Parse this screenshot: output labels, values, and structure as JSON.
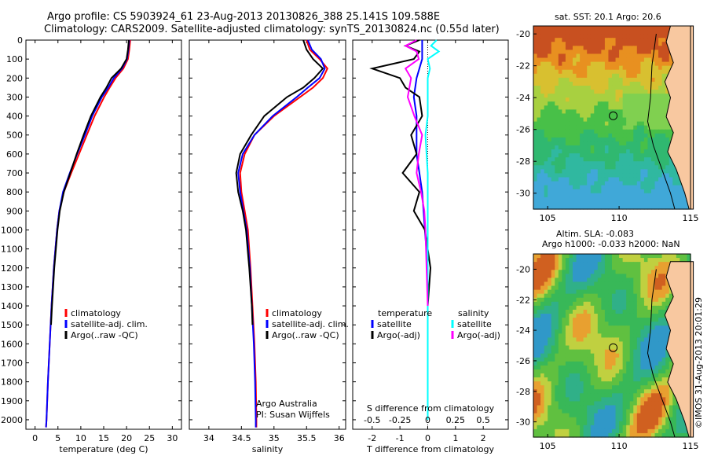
{
  "header": {
    "line1": "Argo profile: CS 5903924_61 23-Aug-2013 20130826_388 25.141S 109.588E",
    "line2": "Climatology: CARS2009. Satellite-adjusted climatology: synTS_20130824.nc (0.55d later)"
  },
  "sst_map": {
    "title": "sat. SST: 20.1  Argo: 20.6"
  },
  "sla_map": {
    "title1": "Altim. SLA: -0.083",
    "title2": "Argo h1000: -0.033 h2000: NaN"
  },
  "footer_vertical": "©IMOS 31-Aug-2013 20:01:29",
  "credit": {
    "line1": "Argo Australia",
    "line2": "PI: Susan Wijffels"
  },
  "colors": {
    "climatology": "#ff0000",
    "satellite": "#0000ff",
    "argo": "#000000",
    "sal_satellite": "#00ffff",
    "sal_argo": "#ff00ff",
    "land": "#f8c8a0"
  },
  "chart_data": [
    {
      "type": "line",
      "xlabel": "temperature (deg C)",
      "ylabel": "",
      "xlim": [
        -2,
        32
      ],
      "ylim": [
        2050,
        0
      ],
      "xticks": [
        0,
        5,
        10,
        15,
        20,
        25,
        30
      ],
      "yticks": [
        0,
        100,
        200,
        300,
        400,
        500,
        600,
        700,
        800,
        900,
        1000,
        1100,
        1200,
        1300,
        1400,
        1500,
        1600,
        1700,
        1800,
        1900,
        2000
      ],
      "legend": [
        "climatology",
        "satellite-adj. clim.",
        "Argo(..raw -QC)"
      ],
      "series": [
        {
          "name": "climatology",
          "depth": [
            0,
            50,
            100,
            150,
            200,
            250,
            300,
            400,
            500,
            600,
            700,
            800,
            900,
            1000,
            1200,
            1400,
            1600,
            1800,
            2000,
            2040
          ],
          "values": [
            20.8,
            20.6,
            20.3,
            19.3,
            17.6,
            16.3,
            15.1,
            13.0,
            11.3,
            9.6,
            7.9,
            6.3,
            5.3,
            4.8,
            4.1,
            3.6,
            3.2,
            2.8,
            2.5,
            2.4
          ]
        },
        {
          "name": "satellite-adj. clim.",
          "depth": [
            0,
            50,
            100,
            150,
            200,
            250,
            300,
            400,
            500,
            600,
            700,
            800,
            900,
            1000,
            1200,
            1400,
            1600,
            1800,
            2000,
            2040
          ],
          "values": [
            20.6,
            20.4,
            20.1,
            19.0,
            17.2,
            16.0,
            14.6,
            12.5,
            10.9,
            9.2,
            7.6,
            6.1,
            5.3,
            4.8,
            4.1,
            3.6,
            3.2,
            2.8,
            2.5,
            2.4
          ]
        },
        {
          "name": "Argo(..raw -QC)",
          "depth": [
            0,
            50,
            100,
            150,
            200,
            250,
            300,
            400,
            500,
            600,
            700,
            800,
            900,
            1000,
            1200,
            1400,
            1500
          ],
          "values": [
            20.5,
            20.3,
            20.0,
            18.8,
            16.7,
            15.6,
            14.3,
            12.2,
            10.6,
            9.1,
            7.7,
            6.3,
            5.4,
            4.9,
            4.2,
            3.7,
            3.5
          ]
        }
      ]
    },
    {
      "type": "line",
      "xlabel": "salinity",
      "ylabel": "",
      "xlim": [
        33.7,
        36.1
      ],
      "ylim": [
        2050,
        0
      ],
      "xticks": [
        34,
        34.5,
        35,
        35.5,
        36
      ],
      "legend": [
        "climatology",
        "satellite-adj. clim.",
        "Argo(..raw -QC)"
      ],
      "series": [
        {
          "name": "climatology",
          "depth": [
            0,
            50,
            100,
            150,
            200,
            250,
            300,
            400,
            500,
            600,
            700,
            800,
            900,
            1000,
            1200,
            1400,
            1600,
            1800,
            2000,
            2040
          ],
          "values": [
            35.5,
            35.55,
            35.7,
            35.82,
            35.75,
            35.6,
            35.4,
            35.0,
            34.7,
            34.55,
            34.48,
            34.5,
            34.55,
            34.6,
            34.64,
            34.67,
            34.7,
            34.72,
            34.73,
            34.73
          ]
        },
        {
          "name": "satellite-adj. clim.",
          "depth": [
            0,
            50,
            100,
            150,
            200,
            250,
            300,
            400,
            500,
            600,
            700,
            800,
            900,
            1000,
            1200,
            1400,
            1600,
            1800,
            2000,
            2040
          ],
          "values": [
            35.52,
            35.58,
            35.72,
            35.78,
            35.7,
            35.52,
            35.35,
            34.98,
            34.7,
            34.52,
            34.45,
            34.48,
            34.53,
            34.58,
            34.63,
            34.66,
            34.69,
            34.71,
            34.72,
            34.72
          ]
        },
        {
          "name": "Argo(..raw -QC)",
          "depth": [
            0,
            50,
            100,
            150,
            200,
            250,
            300,
            400,
            500,
            600,
            700,
            800,
            900,
            1000,
            1200,
            1400,
            1500
          ],
          "values": [
            35.45,
            35.5,
            35.6,
            35.75,
            35.62,
            35.45,
            35.2,
            34.85,
            34.65,
            34.48,
            34.42,
            34.45,
            34.52,
            34.57,
            34.62,
            34.66,
            34.67
          ]
        }
      ]
    },
    {
      "type": "line",
      "xlabel": "T difference from climatology",
      "ylabel": "",
      "xlim": [
        -2.7,
        2.9
      ],
      "ylim": [
        2050,
        0
      ],
      "xticks": [
        -2,
        -1,
        0,
        1,
        2
      ],
      "top_xlabel": "S difference from climatology",
      "top_xticks": [
        "-0.5",
        "-0.25",
        "0",
        "0.25",
        "0.5"
      ],
      "legend": [
        "temperature",
        "satellite",
        "Argo(-adj)",
        "salinity",
        "satellite",
        "Argo(-adj)"
      ],
      "series": [
        {
          "name": "temperature satellite",
          "depth": [
            0,
            100,
            200,
            300,
            400,
            500,
            600,
            700,
            800,
            1000,
            1200,
            1400,
            1600,
            1800,
            1900
          ],
          "values": [
            -0.2,
            -0.2,
            -0.4,
            -0.5,
            -0.4,
            -0.4,
            -0.4,
            -0.3,
            -0.2,
            -0.1,
            0,
            0,
            0,
            0,
            0
          ]
        },
        {
          "name": "temperature Argo(-adj)",
          "depth": [
            0,
            30,
            60,
            100,
            150,
            200,
            250,
            300,
            400,
            500,
            600,
            700,
            800,
            900,
            1000,
            1200,
            1400,
            1600,
            1800,
            1900
          ],
          "values": [
            -0.3,
            -0.8,
            -0.3,
            -0.5,
            -2.0,
            -1.0,
            -0.8,
            -0.3,
            -0.2,
            -0.6,
            -0.4,
            -0.9,
            -0.3,
            -0.5,
            -0.1,
            0.1,
            0,
            0,
            0,
            0
          ]
        },
        {
          "name": "salinity satellite",
          "depth": [
            0,
            30,
            60,
            100,
            150,
            200,
            300,
            400,
            500,
            600,
            700,
            800,
            1000,
            1200,
            1400,
            1600,
            1800,
            2000
          ],
          "values": [
            0.08,
            0.03,
            0.1,
            0.0,
            0.02,
            0.0,
            0.0,
            0.0,
            -0.02,
            -0.01,
            0.0,
            0.0,
            0.0,
            0.0,
            0.0,
            0.0,
            0.0,
            0.0
          ]
        },
        {
          "name": "salinity Argo(-adj)",
          "depth": [
            0,
            30,
            60,
            100,
            150,
            200,
            300,
            400,
            500,
            600,
            700,
            800,
            900,
            1000,
            1200,
            1400
          ],
          "values": [
            -0.1,
            -0.2,
            -0.1,
            -0.08,
            -0.2,
            -0.15,
            -0.18,
            -0.12,
            -0.05,
            -0.08,
            -0.1,
            -0.06,
            -0.03,
            -0.02,
            -0.01,
            0.0
          ]
        }
      ]
    },
    {
      "type": "heatmap",
      "title": "sat. SST: 20.1  Argo: 20.6",
      "xlim": [
        104,
        115
      ],
      "ylim": [
        -31,
        -19.5
      ],
      "xticks": [
        105,
        110,
        115
      ],
      "yticks": [
        -20,
        -22,
        -24,
        -26,
        -28,
        -30
      ],
      "argo_position": {
        "lon": 109.588,
        "lat": -25.141
      }
    },
    {
      "type": "heatmap",
      "title": "Altim. SLA: -0.083",
      "xlim": [
        104,
        115
      ],
      "ylim": [
        -31,
        -19
      ],
      "xticks": [
        105,
        110,
        115
      ],
      "yticks": [
        -20,
        -22,
        -24,
        -26,
        -28,
        -30
      ],
      "argo_position": {
        "lon": 109.588,
        "lat": -25.141
      }
    }
  ]
}
